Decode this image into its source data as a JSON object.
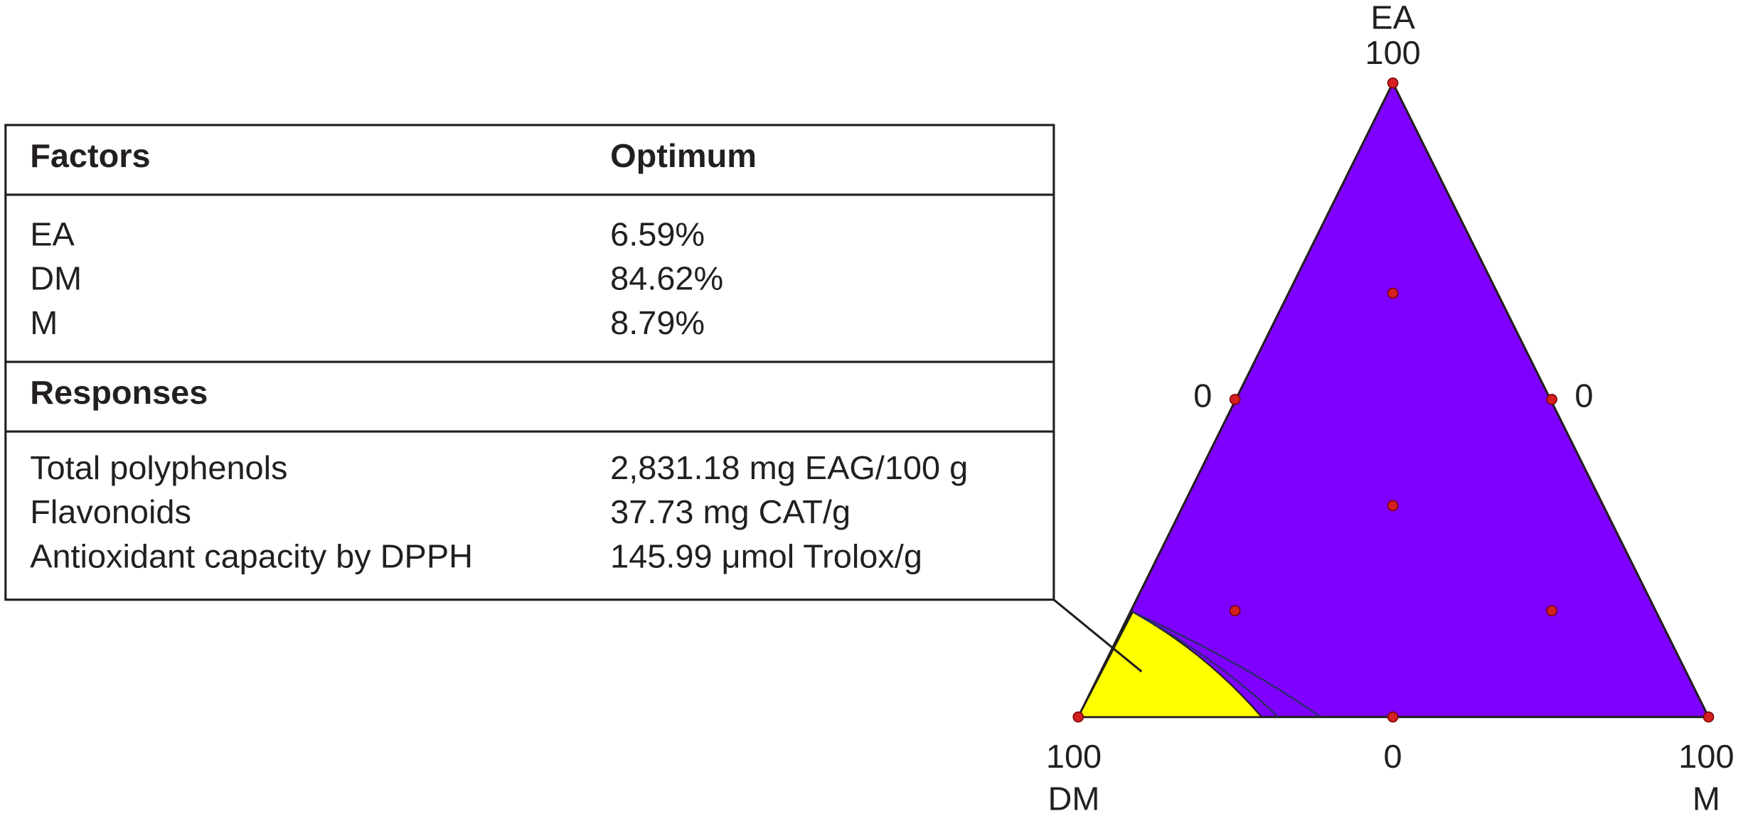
{
  "table": {
    "factors_header": [
      "Factors",
      "Optimum"
    ],
    "factors": [
      [
        "EA",
        "6.59%"
      ],
      [
        "DM",
        "84.62%"
      ],
      [
        "M",
        "8.79%"
      ]
    ],
    "responses_header": "Responses",
    "responses": [
      [
        "Total polyphenols",
        "2,831.18 mg EAG/100 g"
      ],
      [
        "Flavonoids",
        "37.73 mg CAT/g"
      ],
      [
        "Antioxidant capacity by DPPH",
        "145.99 μmol Trolox/g"
      ]
    ]
  },
  "ternary": {
    "top_vertex": {
      "name": "EA",
      "max": "100"
    },
    "left_vertex": {
      "name": "DM",
      "max": "100"
    },
    "right_vertex": {
      "name": "M",
      "max": "100"
    },
    "left_edge_min": "0",
    "right_edge_min": "0",
    "bottom_edge_min": "0"
  }
}
